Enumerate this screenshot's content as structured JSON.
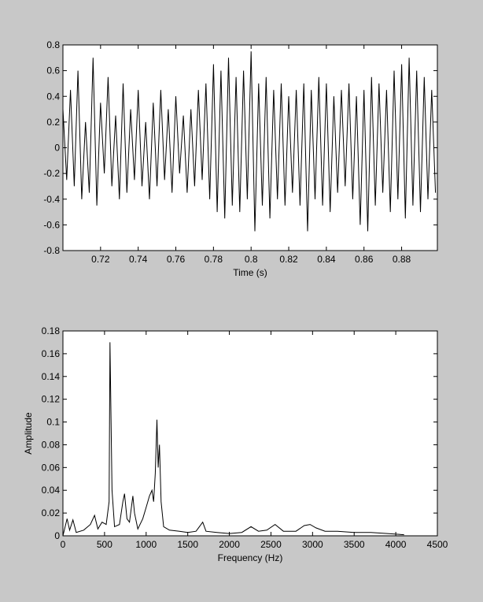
{
  "chart_data": [
    {
      "type": "line",
      "xlabel": "Time (s)",
      "color": "#000000",
      "xlim": [
        0.7,
        0.899
      ],
      "ylim": [
        -0.8,
        0.8
      ],
      "xticks": [
        0.72,
        0.74,
        0.76,
        0.78,
        0.8,
        0.82,
        0.84,
        0.86,
        0.88
      ],
      "yticks": [
        -0.8,
        -0.6,
        -0.4,
        -0.2,
        0,
        0.2,
        0.4,
        0.6,
        0.8
      ],
      "x": [
        0.7,
        0.702,
        0.704,
        0.706,
        0.708,
        0.71,
        0.712,
        0.714,
        0.716,
        0.718,
        0.72,
        0.722,
        0.724,
        0.726,
        0.728,
        0.73,
        0.732,
        0.734,
        0.736,
        0.738,
        0.74,
        0.742,
        0.744,
        0.746,
        0.748,
        0.75,
        0.752,
        0.754,
        0.756,
        0.758,
        0.76,
        0.762,
        0.764,
        0.766,
        0.768,
        0.77,
        0.772,
        0.774,
        0.776,
        0.778,
        0.78,
        0.782,
        0.784,
        0.786,
        0.788,
        0.79,
        0.792,
        0.794,
        0.796,
        0.798,
        0.8,
        0.802,
        0.804,
        0.806,
        0.808,
        0.81,
        0.812,
        0.814,
        0.816,
        0.818,
        0.82,
        0.822,
        0.824,
        0.826,
        0.828,
        0.83,
        0.832,
        0.834,
        0.836,
        0.838,
        0.84,
        0.842,
        0.844,
        0.846,
        0.848,
        0.85,
        0.852,
        0.854,
        0.856,
        0.858,
        0.86,
        0.862,
        0.864,
        0.866,
        0.868,
        0.87,
        0.872,
        0.874,
        0.876,
        0.878,
        0.88,
        0.882,
        0.884,
        0.886,
        0.888,
        0.89,
        0.892,
        0.894,
        0.896,
        0.898
      ],
      "values": [
        0.3,
        -0.25,
        0.45,
        -0.3,
        0.6,
        -0.4,
        0.2,
        -0.35,
        0.7,
        -0.45,
        0.35,
        -0.2,
        0.55,
        -0.3,
        0.25,
        -0.4,
        0.5,
        -0.35,
        0.3,
        -0.25,
        0.45,
        -0.3,
        0.2,
        -0.4,
        0.35,
        -0.3,
        0.45,
        -0.25,
        0.3,
        -0.35,
        0.4,
        -0.2,
        0.25,
        -0.35,
        0.3,
        -0.3,
        0.45,
        -0.25,
        0.5,
        -0.4,
        0.65,
        -0.5,
        0.6,
        -0.55,
        0.7,
        -0.45,
        0.55,
        -0.5,
        0.6,
        -0.4,
        0.75,
        -0.65,
        0.5,
        -0.45,
        0.55,
        -0.55,
        0.45,
        -0.4,
        0.5,
        -0.45,
        0.4,
        -0.35,
        0.45,
        -0.45,
        0.5,
        -0.65,
        0.45,
        -0.4,
        0.55,
        -0.45,
        0.5,
        -0.5,
        0.4,
        -0.35,
        0.45,
        -0.3,
        0.5,
        -0.4,
        0.4,
        -0.6,
        0.45,
        -0.65,
        0.55,
        -0.45,
        0.5,
        -0.35,
        0.45,
        -0.5,
        0.6,
        -0.4,
        0.65,
        -0.55,
        0.7,
        -0.45,
        0.6,
        -0.5,
        0.55,
        -0.4,
        0.45,
        -0.35
      ]
    },
    {
      "type": "line",
      "xlabel": "Frequency (Hz)",
      "ylabel": "Amplitude",
      "color": "#000000",
      "xlim": [
        0,
        4500
      ],
      "ylim": [
        0,
        0.18
      ],
      "xticks": [
        0,
        500,
        1000,
        1500,
        2000,
        2500,
        3000,
        3500,
        4000,
        4500
      ],
      "yticks": [
        0,
        0.02,
        0.04,
        0.06,
        0.08,
        0.1,
        0.12,
        0.14,
        0.16,
        0.18
      ],
      "x": [
        0,
        50,
        80,
        120,
        160,
        250,
        330,
        380,
        420,
        470,
        520,
        555,
        565,
        575,
        590,
        620,
        680,
        720,
        740,
        770,
        800,
        840,
        860,
        900,
        960,
        1000,
        1040,
        1070,
        1090,
        1110,
        1130,
        1145,
        1160,
        1180,
        1210,
        1280,
        1400,
        1500,
        1600,
        1680,
        1720,
        1850,
        2000,
        2150,
        2260,
        2350,
        2450,
        2550,
        2650,
        2800,
        2900,
        2970,
        3040,
        3150,
        3300,
        3500,
        3700,
        3900,
        4100
      ],
      "values": [
        0,
        0.015,
        0.005,
        0.014,
        0.003,
        0.005,
        0.01,
        0.018,
        0.006,
        0.012,
        0.01,
        0.03,
        0.17,
        0.12,
        0.04,
        0.008,
        0.01,
        0.03,
        0.037,
        0.015,
        0.012,
        0.035,
        0.02,
        0.006,
        0.015,
        0.025,
        0.035,
        0.04,
        0.03,
        0.055,
        0.102,
        0.06,
        0.08,
        0.03,
        0.008,
        0.005,
        0.004,
        0.003,
        0.004,
        0.012,
        0.004,
        0.003,
        0.002,
        0.003,
        0.008,
        0.004,
        0.005,
        0.01,
        0.004,
        0.004,
        0.009,
        0.01,
        0.007,
        0.004,
        0.004,
        0.003,
        0.003,
        0.002,
        0.001
      ]
    }
  ]
}
